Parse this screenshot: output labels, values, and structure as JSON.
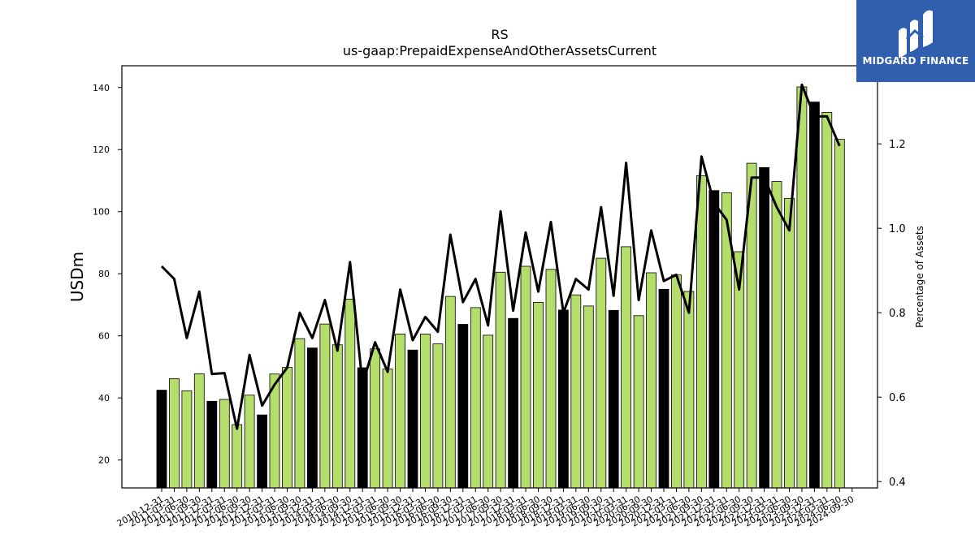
{
  "brand": {
    "name": "MIDGARD FINANCE",
    "logo_color": "#2f5fae"
  },
  "chart_data": {
    "type": "bar",
    "title": "RS",
    "subtitle": "us-gaap:PrepaidExpenseAndOtherAssetsCurrent",
    "ylabel": "USDm",
    "y2label": "Percentage of Assets",
    "ylim": [
      11,
      147
    ],
    "y2lim": [
      0.385,
      1.385
    ],
    "yticks": [
      20,
      40,
      60,
      80,
      100,
      120,
      140
    ],
    "y2ticks": [
      0.4,
      0.6,
      0.8,
      1.0,
      1.2
    ],
    "colors": {
      "year_end_bar": "#000000",
      "quarter_bar": "#b5dd6b",
      "line": "#000000"
    },
    "categories": [
      "2010-12-31",
      "2011-03-31",
      "2011-06-30",
      "2011-09-30",
      "2011-12-31",
      "2012-03-31",
      "2012-06-30",
      "2012-09-30",
      "2012-12-31",
      "2013-03-31",
      "2013-06-30",
      "2013-09-30",
      "2013-12-31",
      "2014-03-31",
      "2014-06-30",
      "2014-09-30",
      "2014-12-31",
      "2015-03-31",
      "2015-06-30",
      "2015-09-30",
      "2015-12-31",
      "2016-03-31",
      "2016-06-30",
      "2016-09-30",
      "2016-12-31",
      "2017-03-31",
      "2017-06-30",
      "2017-09-30",
      "2017-12-31",
      "2018-03-31",
      "2018-06-30",
      "2018-09-30",
      "2018-12-31",
      "2019-03-31",
      "2019-06-30",
      "2019-09-30",
      "2019-12-31",
      "2020-03-31",
      "2020-06-30",
      "2020-09-30",
      "2020-12-31",
      "2021-03-31",
      "2021-06-30",
      "2021-09-30",
      "2021-12-31",
      "2022-03-31",
      "2022-06-30",
      "2022-09-30",
      "2022-12-31",
      "2023-03-31",
      "2023-06-30",
      "2023-09-30",
      "2023-12-31",
      "2024-03-31",
      "2024-06-30",
      "2024-09-30"
    ],
    "series": [
      {
        "values": [
          42.5,
          46.2,
          42.3,
          47.8,
          38.9,
          39.5,
          31.4,
          40.9,
          34.5,
          47.7,
          49.8,
          59.1,
          56.1,
          63.8,
          57.1,
          71.8,
          49.7,
          55.8,
          49.3,
          60.6,
          55.4,
          60.6,
          57.4,
          72.7,
          63.7,
          69.1,
          60.2,
          80.5,
          65.6,
          82.4,
          70.8,
          81.4,
          68.3,
          73.2,
          69.6,
          85.0,
          68.2,
          88.7,
          66.5,
          80.3,
          75.0,
          79.6,
          74.3,
          111.6,
          106.8,
          106.1,
          87.1,
          115.6,
          114.2,
          109.7,
          104.3,
          140.2,
          135.3,
          132.0,
          123.3,
          null
        ]
      },
      {
        "values": [
          0.91,
          0.88,
          0.74,
          0.85,
          0.655,
          0.657,
          0.525,
          0.7,
          0.58,
          0.63,
          0.67,
          0.8,
          0.74,
          0.83,
          0.71,
          0.92,
          0.63,
          0.73,
          0.66,
          0.855,
          0.735,
          0.79,
          0.755,
          0.985,
          0.825,
          0.88,
          0.77,
          1.04,
          0.805,
          0.99,
          0.85,
          1.015,
          0.8,
          0.88,
          0.855,
          1.05,
          0.84,
          1.155,
          0.83,
          0.995,
          0.875,
          0.89,
          0.8,
          1.17,
          1.06,
          1.02,
          0.855,
          1.12,
          1.12,
          1.05,
          0.995,
          1.34,
          1.265,
          1.265,
          1.195,
          null
        ]
      }
    ]
  }
}
